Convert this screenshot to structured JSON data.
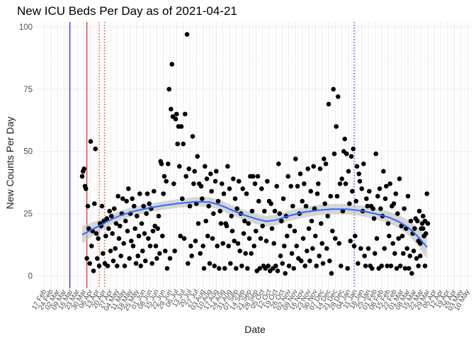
{
  "chart_data": {
    "type": "scatter",
    "title": "New ICU Beds Per Day as of 2021-04-21",
    "xlabel": "Date",
    "ylabel": "New Counts Per Day",
    "ylim": [
      -5,
      102
    ],
    "yticks": [
      0,
      25,
      50,
      75,
      100
    ],
    "x_axis": {
      "start_date": "2020-02-17",
      "tick_interval_days": 7,
      "range_days": [
        -8,
        454
      ]
    },
    "xtick_labels": [
      "17 Feb",
      "24 Feb",
      "02 Mar",
      "09 Mar",
      "16 Mar",
      "23 Mar",
      "30 Mar",
      "06 Apr",
      "13 Apr",
      "20 Apr",
      "27 Apr",
      "04 May",
      "11 May",
      "18 May",
      "25 May",
      "01 Jun",
      "08 Jun",
      "15 Jun",
      "22 Jun",
      "29 Jun",
      "06 Jul",
      "13 Jul",
      "20 Jul",
      "27 Jul",
      "03 Aug",
      "10 Aug",
      "17 Aug",
      "24 Aug",
      "31 Aug",
      "07 Sep",
      "14 Sep",
      "21 Sep",
      "28 Sep",
      "05 Oct",
      "12 Oct",
      "19 Oct",
      "26 Oct",
      "02 Nov",
      "09 Nov",
      "16 Nov",
      "23 Nov",
      "30 Nov",
      "07 Dec",
      "14 Dec",
      "21 Dec",
      "28 Dec",
      "04 Jan",
      "11 Jan",
      "18 Jan",
      "25 Jan",
      "01 Feb",
      "08 Feb",
      "15 Feb",
      "22 Feb",
      "01 Mar",
      "08 Mar",
      "15 Mar",
      "22 Mar",
      "29 Mar",
      "05 Apr",
      "12 Apr",
      "19 Apr",
      "26 Apr",
      "03 May",
      "10 May"
    ],
    "reference_lines": [
      {
        "day": 27,
        "color": "#0000cc",
        "style": "solid"
      },
      {
        "day": 45,
        "color": "#cc0000",
        "style": "solid"
      },
      {
        "day": 58,
        "color": "#cc0000",
        "style": "dotted"
      },
      {
        "day": 64,
        "color": "#cc0000",
        "style": "dotted"
      },
      {
        "day": 328,
        "color": "#0000cc",
        "style": "dotted"
      }
    ],
    "smooth": {
      "color": "#3366ff",
      "band_color": "#bdbdbd",
      "x": [
        40,
        50,
        60,
        70,
        80,
        95,
        110,
        125,
        140,
        160,
        175,
        185,
        195,
        210,
        225,
        235,
        245,
        260,
        275,
        290,
        305,
        320,
        335,
        350,
        365,
        375,
        385,
        395,
        405
      ],
      "y": [
        16.5,
        18.5,
        20.5,
        22.5,
        24.2,
        26,
        27.2,
        28.2,
        29,
        29.8,
        29.6,
        28.6,
        27,
        24.6,
        22.8,
        21.9,
        22.4,
        24.2,
        25.6,
        26.4,
        26.8,
        26.8,
        26.2,
        25,
        23.5,
        21.8,
        19.5,
        16,
        11.5
      ],
      "band_half_width": [
        3.5,
        2.8,
        2.4,
        2.1,
        1.9,
        1.8,
        1.7,
        1.7,
        1.7,
        1.9,
        1.9,
        2,
        2,
        2.1,
        2.1,
        2.1,
        2.1,
        2.1,
        2.1,
        2.1,
        2.1,
        2.1,
        2.1,
        2.2,
        2.3,
        2.6,
        3,
        3.6,
        4.6
      ]
    },
    "points": [
      [
        40,
        40
      ],
      [
        41,
        42
      ],
      [
        42,
        43
      ],
      [
        43,
        36
      ],
      [
        44,
        35
      ],
      [
        45,
        7
      ],
      [
        46,
        28
      ],
      [
        47,
        19
      ],
      [
        48,
        5
      ],
      [
        49,
        54
      ],
      [
        50,
        12
      ],
      [
        51,
        18
      ],
      [
        52,
        2
      ],
      [
        53,
        29
      ],
      [
        54,
        51
      ],
      [
        55,
        17
      ],
      [
        56,
        7
      ],
      [
        57,
        15
      ],
      [
        58,
        4
      ],
      [
        59,
        21
      ],
      [
        60,
        20
      ],
      [
        61,
        28
      ],
      [
        62,
        9
      ],
      [
        63,
        22
      ],
      [
        64,
        5
      ],
      [
        65,
        16
      ],
      [
        66,
        23
      ],
      [
        67,
        4
      ],
      [
        68,
        19
      ],
      [
        69,
        26
      ],
      [
        70,
        10
      ],
      [
        71,
        24
      ],
      [
        72,
        17
      ],
      [
        73,
        6
      ],
      [
        74,
        27
      ],
      [
        75,
        11
      ],
      [
        76,
        21
      ],
      [
        77,
        4
      ],
      [
        78,
        32
      ],
      [
        79,
        15
      ],
      [
        80,
        20
      ],
      [
        81,
        8
      ],
      [
        82,
        25
      ],
      [
        83,
        31
      ],
      [
        84,
        13
      ],
      [
        85,
        4
      ],
      [
        86,
        22
      ],
      [
        87,
        30
      ],
      [
        88,
        18
      ],
      [
        89,
        35
      ],
      [
        90,
        7
      ],
      [
        91,
        25
      ],
      [
        92,
        14
      ],
      [
        93,
        31
      ],
      [
        94,
        12
      ],
      [
        95,
        28
      ],
      [
        96,
        19
      ],
      [
        97,
        5
      ],
      [
        98,
        24
      ],
      [
        99,
        8
      ],
      [
        100,
        16
      ],
      [
        101,
        33
      ],
      [
        102,
        4
      ],
      [
        103,
        21
      ],
      [
        104,
        10
      ],
      [
        105,
        28
      ],
      [
        106,
        17
      ],
      [
        107,
        6
      ],
      [
        108,
        25
      ],
      [
        109,
        33
      ],
      [
        110,
        15
      ],
      [
        111,
        29
      ],
      [
        112,
        12
      ],
      [
        113,
        27
      ],
      [
        114,
        5
      ],
      [
        115,
        18
      ],
      [
        116,
        34
      ],
      [
        117,
        20
      ],
      [
        118,
        12
      ],
      [
        119,
        7
      ],
      [
        120,
        19
      ],
      [
        121,
        24
      ],
      [
        122,
        9
      ],
      [
        123,
        46
      ],
      [
        124,
        45
      ],
      [
        125,
        16
      ],
      [
        126,
        33
      ],
      [
        127,
        40
      ],
      [
        128,
        10
      ],
      [
        129,
        38
      ],
      [
        130,
        3
      ],
      [
        131,
        45
      ],
      [
        132,
        75
      ],
      [
        133,
        7
      ],
      [
        134,
        67
      ],
      [
        135,
        85
      ],
      [
        136,
        64
      ],
      [
        137,
        37
      ],
      [
        138,
        10
      ],
      [
        139,
        63
      ],
      [
        140,
        65
      ],
      [
        141,
        53
      ],
      [
        142,
        60
      ],
      [
        143,
        44
      ],
      [
        144,
        16
      ],
      [
        145,
        60
      ],
      [
        146,
        31
      ],
      [
        147,
        53
      ],
      [
        148,
        15
      ],
      [
        149,
        65
      ],
      [
        150,
        40
      ],
      [
        151,
        97
      ],
      [
        152,
        5
      ],
      [
        153,
        43
      ],
      [
        154,
        28
      ],
      [
        155,
        12
      ],
      [
        156,
        8
      ],
      [
        157,
        56
      ],
      [
        158,
        37
      ],
      [
        159,
        42
      ],
      [
        160,
        14
      ],
      [
        161,
        29
      ],
      [
        162,
        48
      ],
      [
        163,
        21
      ],
      [
        164,
        37
      ],
      [
        165,
        9
      ],
      [
        166,
        36
      ],
      [
        167,
        31
      ],
      [
        168,
        12
      ],
      [
        169,
        3
      ],
      [
        170,
        44
      ],
      [
        171,
        22
      ],
      [
        172,
        39
      ],
      [
        173,
        16
      ],
      [
        174,
        28
      ],
      [
        175,
        5
      ],
      [
        176,
        41
      ],
      [
        177,
        34
      ],
      [
        178,
        15
      ],
      [
        179,
        25
      ],
      [
        180,
        4
      ],
      [
        181,
        38
      ],
      [
        182,
        42
      ],
      [
        183,
        12
      ],
      [
        184,
        30
      ],
      [
        185,
        3
      ],
      [
        186,
        26
      ],
      [
        187,
        21
      ],
      [
        188,
        37
      ],
      [
        189,
        13
      ],
      [
        190,
        33
      ],
      [
        191,
        3
      ],
      [
        192,
        21
      ],
      [
        193,
        20
      ],
      [
        194,
        44
      ],
      [
        195,
        12
      ],
      [
        196,
        35
      ],
      [
        197,
        5
      ],
      [
        198,
        24
      ],
      [
        199,
        18
      ],
      [
        200,
        39
      ],
      [
        201,
        14
      ],
      [
        202,
        31
      ],
      [
        203,
        3
      ],
      [
        204,
        27
      ],
      [
        205,
        13
      ],
      [
        206,
        38
      ],
      [
        207,
        10
      ],
      [
        208,
        25
      ],
      [
        209,
        4
      ],
      [
        210,
        35
      ],
      [
        211,
        17
      ],
      [
        212,
        22
      ],
      [
        213,
        9
      ],
      [
        214,
        33
      ],
      [
        215,
        3
      ],
      [
        216,
        21
      ],
      [
        217,
        15
      ],
      [
        218,
        40
      ],
      [
        219,
        9
      ],
      [
        220,
        26
      ],
      [
        221,
        40
      ],
      [
        222,
        12
      ],
      [
        223,
        37
      ],
      [
        224,
        18
      ],
      [
        225,
        2
      ],
      [
        226,
        40
      ],
      [
        227,
        30
      ],
      [
        228,
        3
      ],
      [
        229,
        15
      ],
      [
        230,
        35
      ],
      [
        231,
        20
      ],
      [
        232,
        4
      ],
      [
        233,
        26
      ],
      [
        234,
        3
      ],
      [
        235,
        14
      ],
      [
        236,
        38
      ],
      [
        237,
        4
      ],
      [
        238,
        30
      ],
      [
        239,
        2
      ],
      [
        240,
        29
      ],
      [
        241,
        19
      ],
      [
        242,
        3
      ],
      [
        243,
        13
      ],
      [
        244,
        26
      ],
      [
        245,
        4
      ],
      [
        246,
        36
      ],
      [
        247,
        2
      ],
      [
        248,
        45
      ],
      [
        249,
        25
      ],
      [
        250,
        8
      ],
      [
        251,
        22
      ],
      [
        252,
        5
      ],
      [
        253,
        31
      ],
      [
        254,
        12
      ],
      [
        255,
        1
      ],
      [
        256,
        24
      ],
      [
        257,
        16
      ],
      [
        258,
        40
      ],
      [
        259,
        4
      ],
      [
        260,
        20
      ],
      [
        261,
        36
      ],
      [
        262,
        9
      ],
      [
        263,
        28
      ],
      [
        264,
        3
      ],
      [
        265,
        18
      ],
      [
        266,
        47
      ],
      [
        267,
        12
      ],
      [
        268,
        36
      ],
      [
        269,
        7
      ],
      [
        270,
        25
      ],
      [
        271,
        41
      ],
      [
        272,
        6
      ],
      [
        273,
        30
      ],
      [
        274,
        15
      ],
      [
        275,
        37
      ],
      [
        276,
        4
      ],
      [
        277,
        28
      ],
      [
        278,
        10
      ],
      [
        279,
        43
      ],
      [
        280,
        19
      ],
      [
        281,
        6
      ],
      [
        282,
        34
      ],
      [
        283,
        22
      ],
      [
        284,
        11
      ],
      [
        285,
        44
      ],
      [
        286,
        27
      ],
      [
        287,
        16
      ],
      [
        288,
        4
      ],
      [
        289,
        33
      ],
      [
        290,
        37
      ],
      [
        291,
        8
      ],
      [
        292,
        43
      ],
      [
        293,
        21
      ],
      [
        294,
        13
      ],
      [
        295,
        5
      ],
      [
        296,
        47
      ],
      [
        297,
        29
      ],
      [
        298,
        45
      ],
      [
        299,
        11
      ],
      [
        300,
        24
      ],
      [
        301,
        69
      ],
      [
        302,
        6
      ],
      [
        303,
        32
      ],
      [
        304,
        1
      ],
      [
        305,
        18
      ],
      [
        306,
        75
      ],
      [
        307,
        49
      ],
      [
        308,
        15
      ],
      [
        309,
        60
      ],
      [
        310,
        32
      ],
      [
        311,
        72
      ],
      [
        312,
        13
      ],
      [
        313,
        37
      ],
      [
        314,
        4
      ],
      [
        315,
        39
      ],
      [
        316,
        26
      ],
      [
        317,
        50
      ],
      [
        318,
        55
      ],
      [
        319,
        37
      ],
      [
        320,
        49
      ],
      [
        321,
        3
      ],
      [
        322,
        42
      ],
      [
        323,
        29
      ],
      [
        324,
        14
      ],
      [
        325,
        48
      ],
      [
        326,
        34
      ],
      [
        327,
        51
      ],
      [
        328,
        12
      ],
      [
        329,
        16
      ],
      [
        330,
        30
      ],
      [
        331,
        44
      ],
      [
        332,
        5
      ],
      [
        333,
        41
      ],
      [
        334,
        38
      ],
      [
        335,
        11
      ],
      [
        336,
        35
      ],
      [
        337,
        26
      ],
      [
        338,
        45
      ],
      [
        339,
        8
      ],
      [
        340,
        4
      ],
      [
        341,
        31
      ],
      [
        342,
        28
      ],
      [
        343,
        11
      ],
      [
        344,
        34
      ],
      [
        345,
        4
      ],
      [
        346,
        28
      ],
      [
        347,
        3
      ],
      [
        348,
        27
      ],
      [
        349,
        23
      ],
      [
        350,
        9
      ],
      [
        351,
        49
      ],
      [
        352,
        15
      ],
      [
        353,
        32
      ],
      [
        354,
        3
      ],
      [
        355,
        35
      ],
      [
        356,
        27
      ],
      [
        357,
        4
      ],
      [
        358,
        24
      ],
      [
        359,
        42
      ],
      [
        360,
        11
      ],
      [
        361,
        31
      ],
      [
        362,
        36
      ],
      [
        363,
        4
      ],
      [
        364,
        21
      ],
      [
        365,
        16
      ],
      [
        366,
        37
      ],
      [
        367,
        4
      ],
      [
        368,
        28
      ],
      [
        369,
        13
      ],
      [
        370,
        29
      ],
      [
        371,
        9
      ],
      [
        372,
        33
      ],
      [
        373,
        3
      ],
      [
        374,
        25
      ],
      [
        375,
        15
      ],
      [
        376,
        39
      ],
      [
        377,
        4
      ],
      [
        378,
        20
      ],
      [
        379,
        16
      ],
      [
        380,
        9
      ],
      [
        381,
        27
      ],
      [
        382,
        3
      ],
      [
        383,
        19
      ],
      [
        384,
        11
      ],
      [
        385,
        32
      ],
      [
        386,
        3
      ],
      [
        387,
        8
      ],
      [
        388,
        22
      ],
      [
        389,
        1
      ],
      [
        390,
        17
      ],
      [
        391,
        10
      ],
      [
        392,
        19
      ],
      [
        393,
        23
      ],
      [
        394,
        7
      ],
      [
        395,
        22
      ],
      [
        396,
        4
      ],
      [
        397,
        26
      ],
      [
        398,
        13
      ],
      [
        399,
        19
      ],
      [
        400,
        21
      ],
      [
        401,
        24
      ],
      [
        402,
        16
      ],
      [
        403,
        4
      ],
      [
        404,
        17
      ],
      [
        405,
        33
      ],
      [
        406,
        21
      ],
      [
        403,
        22
      ],
      [
        401,
        19
      ],
      [
        398,
        8
      ],
      [
        396,
        14
      ]
    ]
  }
}
